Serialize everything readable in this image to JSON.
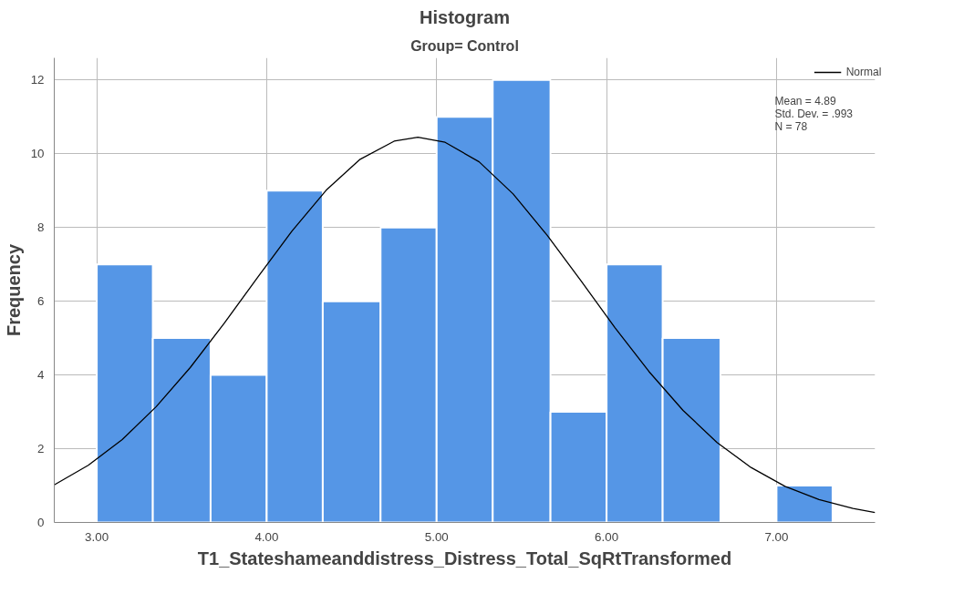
{
  "chart_data": {
    "type": "histogram",
    "title": "Histogram",
    "subtitle": "Group= Control",
    "xlabel": "T1_Stateshameanddistress_Distress_Total_SqRtTransformed",
    "ylabel": "Frequency",
    "bins": [
      3.0,
      3.33,
      3.67,
      4.0,
      4.33,
      4.67,
      5.0,
      5.33,
      5.67,
      6.0,
      6.33,
      6.67,
      7.0,
      7.33
    ],
    "values": [
      7,
      5,
      4,
      9,
      6,
      8,
      11,
      12,
      3,
      7,
      5,
      0,
      1
    ],
    "color": "#5596e6",
    "series": [
      {
        "name": "Normal",
        "type": "line",
        "color": "#000000",
        "x": [
          2.75,
          2.95,
          3.15,
          3.35,
          3.55,
          3.75,
          3.95,
          4.15,
          4.35,
          4.55,
          4.75,
          4.89,
          5.05,
          5.25,
          5.45,
          5.65,
          5.85,
          6.05,
          6.25,
          6.45,
          6.65,
          6.85,
          7.05,
          7.25,
          7.45,
          7.58
        ],
        "values": [
          1.02,
          1.55,
          2.25,
          3.14,
          4.2,
          5.4,
          6.67,
          7.91,
          9.01,
          9.85,
          10.34,
          10.45,
          10.31,
          9.78,
          8.91,
          7.79,
          6.55,
          5.28,
          4.09,
          3.04,
          2.17,
          1.49,
          0.98,
          0.62,
          0.38,
          0.27
        ]
      }
    ],
    "xlim": [
      2.75,
      7.58
    ],
    "ylim": [
      0,
      12.6
    ],
    "xticks": [
      {
        "value": 3,
        "label": "3.00"
      },
      {
        "value": 4,
        "label": "4.00"
      },
      {
        "value": 5,
        "label": "5.00"
      },
      {
        "value": 6,
        "label": "6.00"
      },
      {
        "value": 7,
        "label": "7.00"
      }
    ],
    "yticks": [
      0,
      2,
      4,
      6,
      8,
      10,
      12
    ],
    "grid": true,
    "legend": "top right",
    "annotations": [
      "Mean = 4.89",
      "Std. Dev. = .993",
      "N = 78"
    ]
  }
}
